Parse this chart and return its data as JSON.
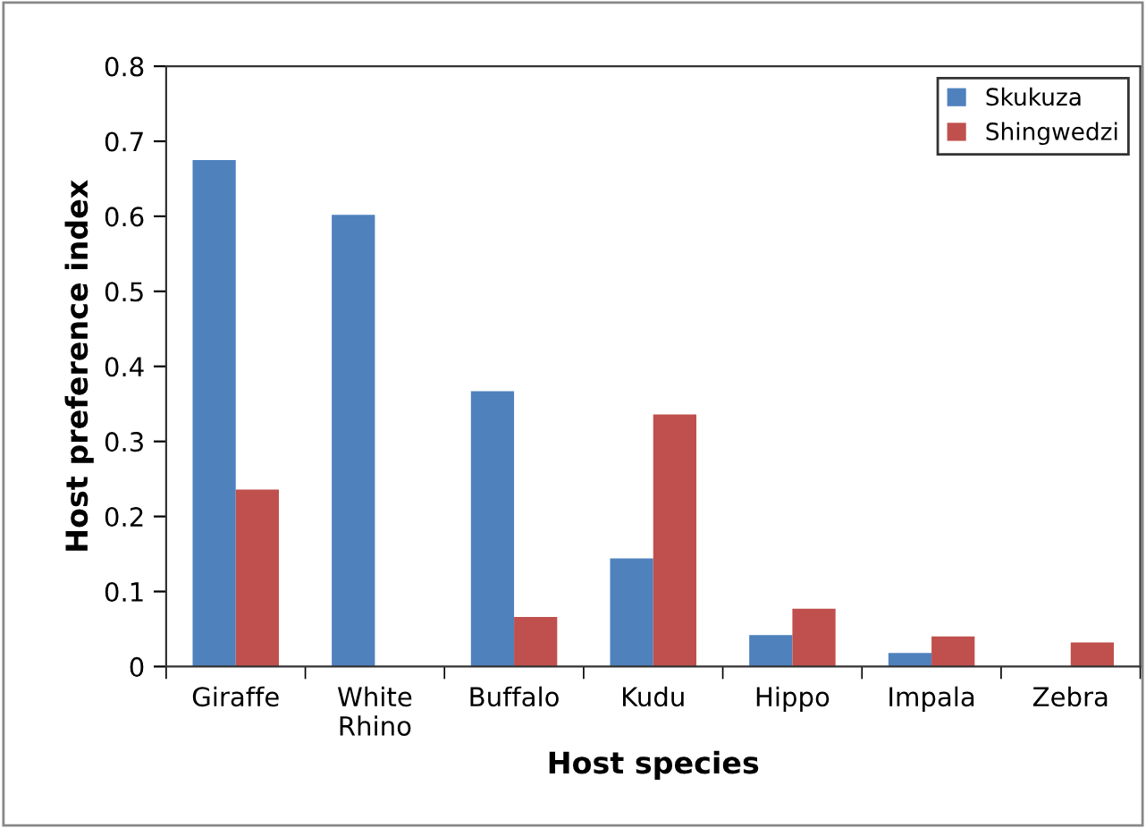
{
  "chart_data": {
    "type": "bar",
    "xlabel": "Host species",
    "ylabel": "Host preference index",
    "categories": [
      "Giraffe",
      "White\nRhino",
      "Buffalo",
      "Kudu",
      "Hippo",
      "Impala",
      "Zebra"
    ],
    "series": [
      {
        "name": "Skukuza",
        "color": "#4f81bd",
        "values": [
          0.675,
          0.602,
          0.367,
          0.144,
          0.042,
          0.018,
          0
        ]
      },
      {
        "name": "Shingwedzi",
        "color": "#c0504d",
        "values": [
          0.236,
          0,
          0.066,
          0.336,
          0.077,
          0.04,
          0.032
        ]
      }
    ],
    "ylim": [
      0,
      0.8
    ],
    "yticks": [
      0,
      0.1,
      0.2,
      0.3,
      0.4,
      0.5,
      0.6,
      0.7,
      0.8
    ],
    "grid": false,
    "legend": "top right"
  }
}
